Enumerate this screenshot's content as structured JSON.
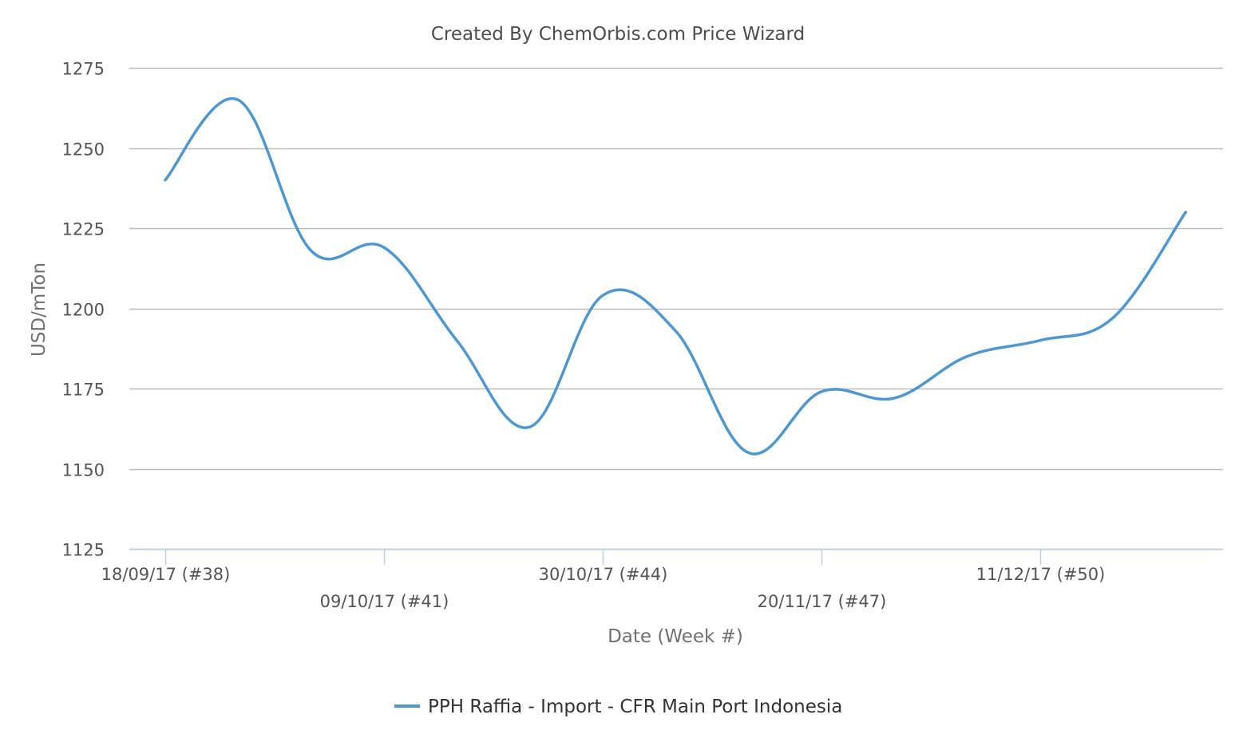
{
  "chart_data": {
    "type": "line",
    "title": "Created By ChemOrbis.com Price Wizard",
    "xlabel": "Date (Week #)",
    "ylabel": "USD/mTon",
    "ylim": [
      1125,
      1275
    ],
    "yticks": [
      "1275",
      "1250",
      "1225",
      "1200",
      "1175",
      "1150",
      "1125"
    ],
    "xticks": [
      "18/09/17 (#38)",
      "09/10/17 (#41)",
      "30/10/17 (#44)",
      "20/11/17 (#47)",
      "11/12/17 (#50)"
    ],
    "x": [
      "18/09/17",
      "25/09/17",
      "02/10/17",
      "09/10/17",
      "16/10/17",
      "23/10/17",
      "30/10/17",
      "06/11/17",
      "13/11/17",
      "20/11/17",
      "27/11/17",
      "04/12/17",
      "11/12/17",
      "18/12/17",
      "25/12/17"
    ],
    "grid": true,
    "legend_position": "bottom",
    "series": [
      {
        "name": "PPH Raffia - Import - CFR Main Port Indonesia",
        "color": "#4f97cd",
        "values": [
          1240,
          1265,
          1218,
          1219,
          1190,
          1163,
          1204,
          1193,
          1155,
          1174,
          1172,
          1185,
          1190,
          1197,
          1230
        ]
      }
    ]
  }
}
